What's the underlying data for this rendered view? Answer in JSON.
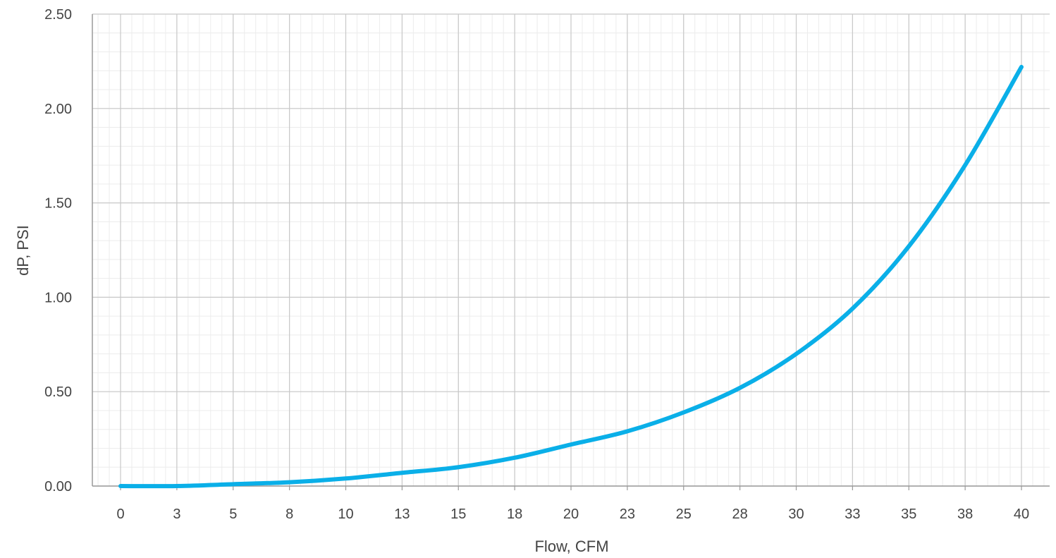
{
  "chart_data": {
    "type": "line",
    "title": "",
    "xlabel": "Flow, CFM",
    "ylabel": "dP, PSI",
    "xlim": [
      0,
      40
    ],
    "ylim": [
      0,
      2.5
    ],
    "grid": true,
    "x_tick_labels": [
      "0",
      "3",
      "5",
      "8",
      "10",
      "13",
      "15",
      "18",
      "20",
      "23",
      "25",
      "28",
      "30",
      "33",
      "35",
      "38",
      "40"
    ],
    "y_tick_labels": [
      "0.00",
      "0.50",
      "1.00",
      "1.50",
      "2.00",
      "2.50"
    ],
    "series": [
      {
        "color": "#0AAFE8",
        "x": [
          0,
          2.5,
          5,
          7.5,
          10,
          12.5,
          15,
          17.5,
          20,
          22.5,
          25,
          27.5,
          30,
          32.5,
          35,
          37.5,
          40
        ],
        "y": [
          0.0,
          0.0,
          0.01,
          0.02,
          0.04,
          0.07,
          0.1,
          0.15,
          0.22,
          0.29,
          0.39,
          0.52,
          0.7,
          0.94,
          1.27,
          1.7,
          2.22
        ]
      }
    ]
  }
}
